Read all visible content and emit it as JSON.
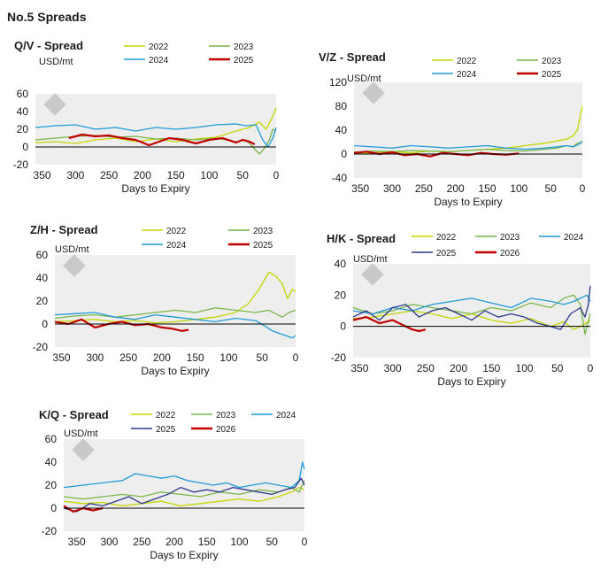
{
  "page": {
    "title": "No.5 Spreads"
  },
  "colors": {
    "2022": "#c4d600",
    "2023": "#7ab648",
    "2024": "#1f9bd7",
    "2025": "#2e3a8c",
    "2026": "#c00000",
    "plot_bg": "#eeeeee",
    "zero_line": "#000000"
  },
  "chart_data": [
    {
      "id": "qv",
      "type": "line",
      "title": "Q/V - Spread",
      "ylabel": "USD/mt",
      "xlabel": "Days to Expiry",
      "xlim": [
        360,
        0
      ],
      "ylim": [
        -20,
        60
      ],
      "xticks": [
        350,
        300,
        250,
        200,
        150,
        100,
        50,
        0
      ],
      "yticks": [
        -20,
        0,
        20,
        40,
        60
      ],
      "series": [
        {
          "name": "2022",
          "color": "#c4d600",
          "x": [
            360,
            330,
            300,
            270,
            240,
            210,
            180,
            150,
            120,
            90,
            60,
            40,
            25,
            15,
            8,
            3,
            0
          ],
          "y": [
            5,
            6,
            4,
            8,
            10,
            6,
            9,
            6,
            9,
            11,
            18,
            22,
            28,
            20,
            30,
            38,
            44
          ]
        },
        {
          "name": "2023",
          "color": "#7ab648",
          "x": [
            360,
            330,
            300,
            270,
            240,
            210,
            180,
            150,
            120,
            90,
            60,
            45,
            35,
            25,
            18,
            10,
            5,
            0
          ],
          "y": [
            8,
            10,
            12,
            13,
            11,
            12,
            9,
            10,
            8,
            10,
            6,
            8,
            0,
            -8,
            -2,
            8,
            20,
            18
          ]
        },
        {
          "name": "2024",
          "color": "#1f9bd7",
          "x": [
            360,
            330,
            300,
            270,
            240,
            210,
            180,
            150,
            120,
            90,
            60,
            45,
            30,
            20,
            12,
            5,
            0
          ],
          "y": [
            22,
            24,
            25,
            20,
            22,
            18,
            22,
            20,
            22,
            25,
            26,
            24,
            25,
            8,
            0,
            10,
            22
          ]
        },
        {
          "name": "2025",
          "color": "#c00000",
          "x": [
            310,
            290,
            270,
            250,
            230,
            210,
            190,
            175,
            160,
            140,
            120,
            100,
            80,
            60,
            50,
            40,
            32
          ],
          "y": [
            10,
            14,
            12,
            13,
            10,
            8,
            2,
            6,
            10,
            8,
            4,
            8,
            10,
            5,
            8,
            6,
            3
          ]
        }
      ]
    },
    {
      "id": "vz",
      "type": "line",
      "title": "V/Z - Spread",
      "ylabel": "USD/mt",
      "xlabel": "Days to Expiry",
      "xlim": [
        360,
        0
      ],
      "ylim": [
        -40,
        120
      ],
      "xticks": [
        350,
        300,
        250,
        200,
        150,
        100,
        50,
        0
      ],
      "yticks": [
        -40,
        0,
        40,
        80,
        120
      ],
      "series": [
        {
          "name": "2022",
          "color": "#c4d600",
          "x": [
            360,
            330,
            300,
            270,
            240,
            210,
            180,
            150,
            120,
            90,
            60,
            40,
            25,
            15,
            8,
            3,
            0
          ],
          "y": [
            0,
            2,
            4,
            2,
            5,
            4,
            6,
            8,
            10,
            14,
            18,
            22,
            25,
            30,
            40,
            65,
            80
          ]
        },
        {
          "name": "2023",
          "color": "#7ab648",
          "x": [
            360,
            330,
            300,
            270,
            240,
            210,
            180,
            150,
            120,
            90,
            60,
            40,
            25,
            15,
            8,
            0
          ],
          "y": [
            3,
            5,
            4,
            6,
            5,
            4,
            6,
            8,
            6,
            5,
            8,
            10,
            14,
            12,
            18,
            20
          ]
        },
        {
          "name": "2024",
          "color": "#1f9bd7",
          "x": [
            360,
            330,
            300,
            270,
            240,
            210,
            180,
            150,
            120,
            90,
            60,
            40,
            25,
            15,
            8,
            3,
            0
          ],
          "y": [
            14,
            12,
            10,
            14,
            12,
            10,
            12,
            14,
            10,
            8,
            10,
            12,
            14,
            12,
            15,
            18,
            22
          ]
        },
        {
          "name": "2025",
          "color": "#c00000",
          "x": [
            360,
            340,
            320,
            300,
            280,
            260,
            240,
            220,
            200,
            180,
            160,
            140,
            120,
            100
          ],
          "y": [
            2,
            4,
            0,
            3,
            -2,
            0,
            -4,
            2,
            0,
            -2,
            2,
            0,
            -1,
            1
          ]
        }
      ]
    },
    {
      "id": "zh",
      "type": "line",
      "title": "Z/H - Spread",
      "ylabel": "USD/mt",
      "xlabel": "Days to Expiry",
      "xlim": [
        360,
        0
      ],
      "ylim": [
        -20,
        60
      ],
      "xticks": [
        350,
        300,
        250,
        200,
        150,
        100,
        50,
        0
      ],
      "yticks": [
        -20,
        0,
        20,
        40,
        60
      ],
      "series": [
        {
          "name": "2022",
          "color": "#c4d600",
          "x": [
            360,
            330,
            300,
            270,
            240,
            210,
            180,
            150,
            120,
            90,
            70,
            55,
            40,
            30,
            20,
            12,
            5,
            0
          ],
          "y": [
            2,
            3,
            4,
            2,
            3,
            1,
            2,
            4,
            6,
            10,
            18,
            30,
            45,
            42,
            35,
            22,
            30,
            28
          ]
        },
        {
          "name": "2023",
          "color": "#7ab648",
          "x": [
            360,
            330,
            300,
            270,
            240,
            210,
            180,
            150,
            120,
            90,
            60,
            40,
            20,
            10,
            0
          ],
          "y": [
            5,
            7,
            8,
            6,
            8,
            10,
            12,
            10,
            14,
            12,
            10,
            12,
            6,
            10,
            12
          ]
        },
        {
          "name": "2024",
          "color": "#1f9bd7",
          "x": [
            360,
            330,
            300,
            270,
            240,
            210,
            180,
            150,
            120,
            90,
            60,
            45,
            35,
            25,
            15,
            5,
            0
          ],
          "y": [
            8,
            9,
            10,
            6,
            4,
            8,
            6,
            4,
            2,
            5,
            3,
            -2,
            -6,
            -8,
            -10,
            -12,
            -10
          ]
        },
        {
          "name": "2025",
          "color": "#c00000",
          "x": [
            360,
            340,
            320,
            300,
            280,
            260,
            240,
            220,
            200,
            185,
            170,
            160
          ],
          "y": [
            2,
            0,
            4,
            -3,
            0,
            2,
            -1,
            0,
            -3,
            -4,
            -6,
            -5
          ]
        }
      ]
    },
    {
      "id": "hk",
      "type": "line",
      "title": "H/K - Spread",
      "ylabel": "USD/mt",
      "xlabel": "Days to Expiry",
      "xlim": [
        360,
        0
      ],
      "ylim": [
        -20,
        40
      ],
      "xticks": [
        350,
        300,
        250,
        200,
        150,
        100,
        50,
        0
      ],
      "yticks": [
        -20,
        0,
        20,
        40
      ],
      "series": [
        {
          "name": "2022",
          "color": "#c4d600",
          "x": [
            360,
            330,
            300,
            270,
            240,
            210,
            180,
            150,
            120,
            90,
            60,
            40,
            25,
            10,
            0
          ],
          "y": [
            5,
            6,
            8,
            10,
            8,
            5,
            8,
            4,
            2,
            5,
            0,
            3,
            -2,
            1,
            4
          ]
        },
        {
          "name": "2023",
          "color": "#7ab648",
          "x": [
            360,
            330,
            300,
            270,
            240,
            210,
            180,
            150,
            120,
            90,
            60,
            40,
            25,
            15,
            8,
            0
          ],
          "y": [
            12,
            8,
            10,
            14,
            12,
            10,
            8,
            12,
            10,
            15,
            12,
            18,
            20,
            14,
            -5,
            8
          ]
        },
        {
          "name": "2024",
          "color": "#1f9bd7",
          "x": [
            360,
            330,
            300,
            270,
            240,
            210,
            180,
            150,
            120,
            90,
            60,
            40,
            25,
            15,
            5,
            0
          ],
          "y": [
            10,
            8,
            12,
            10,
            14,
            16,
            18,
            15,
            12,
            18,
            16,
            14,
            16,
            18,
            20,
            16
          ]
        },
        {
          "name": "2025",
          "color": "#2e3a8c",
          "x": [
            360,
            340,
            320,
            300,
            280,
            260,
            240,
            220,
            200,
            180,
            160,
            140,
            120,
            100,
            80,
            60,
            45,
            30,
            15,
            8,
            3,
            0
          ],
          "y": [
            6,
            10,
            4,
            12,
            14,
            6,
            10,
            12,
            8,
            4,
            10,
            6,
            8,
            6,
            2,
            0,
            -2,
            8,
            12,
            6,
            14,
            26
          ]
        },
        {
          "name": "2026",
          "color": "#c00000",
          "x": [
            360,
            340,
            320,
            300,
            280,
            270,
            260,
            250
          ],
          "y": [
            4,
            6,
            2,
            4,
            0,
            -2,
            -3,
            -2
          ]
        }
      ]
    },
    {
      "id": "kq",
      "type": "line",
      "title": "K/Q - Spread",
      "ylabel": "USD/mt",
      "xlabel": "Days to Expiry",
      "xlim": [
        370,
        0
      ],
      "ylim": [
        -20,
        60
      ],
      "xticks": [
        350,
        300,
        250,
        200,
        150,
        100,
        50,
        0
      ],
      "yticks": [
        -20,
        0,
        20,
        40,
        60
      ],
      "series": [
        {
          "name": "2022",
          "color": "#c4d600",
          "x": [
            370,
            340,
            310,
            280,
            250,
            220,
            190,
            160,
            130,
            100,
            70,
            40,
            20,
            8,
            0
          ],
          "y": [
            6,
            4,
            5,
            2,
            4,
            6,
            2,
            4,
            6,
            8,
            6,
            10,
            14,
            18,
            16
          ]
        },
        {
          "name": "2023",
          "color": "#7ab648",
          "x": [
            370,
            340,
            310,
            280,
            250,
            220,
            190,
            160,
            130,
            100,
            70,
            40,
            20,
            8,
            0
          ],
          "y": [
            10,
            8,
            10,
            12,
            10,
            14,
            12,
            10,
            14,
            12,
            16,
            14,
            18,
            14,
            24
          ]
        },
        {
          "name": "2024",
          "color": "#1f9bd7",
          "x": [
            370,
            340,
            310,
            280,
            260,
            240,
            220,
            200,
            180,
            160,
            140,
            120,
            100,
            80,
            60,
            40,
            20,
            8,
            3,
            0
          ],
          "y": [
            18,
            20,
            22,
            24,
            30,
            28,
            26,
            28,
            24,
            22,
            20,
            22,
            18,
            20,
            22,
            20,
            18,
            24,
            40,
            34
          ]
        },
        {
          "name": "2025",
          "color": "#2e3a8c",
          "x": [
            370,
            350,
            330,
            310,
            290,
            270,
            250,
            230,
            210,
            190,
            170,
            150,
            130,
            110,
            90,
            70,
            50,
            30,
            15,
            5,
            0
          ],
          "y": [
            0,
            -3,
            4,
            2,
            6,
            10,
            4,
            8,
            12,
            18,
            14,
            16,
            14,
            18,
            16,
            14,
            12,
            16,
            18,
            26,
            20
          ]
        },
        {
          "name": "2026",
          "color": "#c00000",
          "x": [
            370,
            355,
            340,
            325,
            310
          ],
          "y": [
            2,
            -3,
            0,
            -2,
            0
          ]
        }
      ]
    }
  ]
}
